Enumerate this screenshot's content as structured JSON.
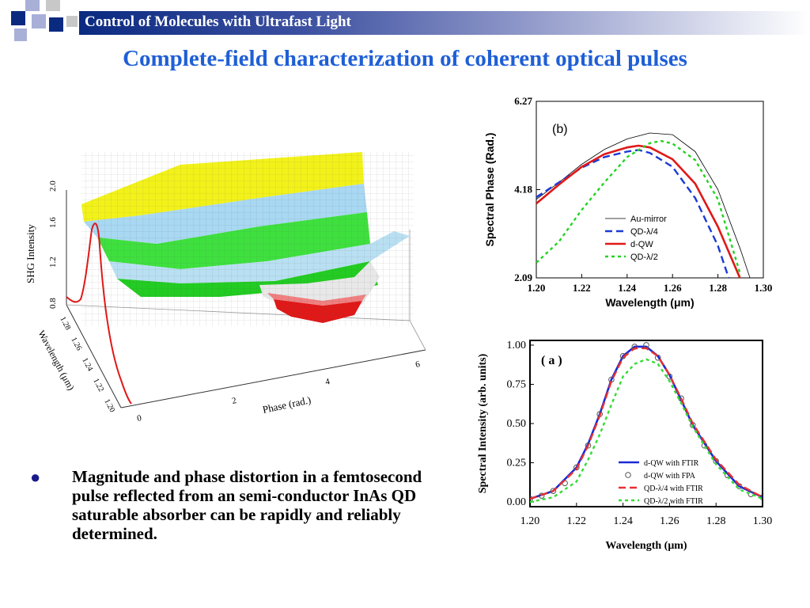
{
  "header": {
    "text": "Control of Molecules with Ultrafast Light",
    "colors": {
      "navy": "#0a2a80",
      "lavender": "#a8b0d8",
      "grey": "#c8c8c8"
    }
  },
  "title": "Complete-field characterization of coherent optical pulses",
  "bullet": {
    "text": "Magnitude and phase distortion in a femtosecond pulse reflected from an semi-conductor InAs QD saturable absorber can be rapidly and reliably determined."
  },
  "surface_plot": {
    "z_label": "SHG Intensity",
    "z_ticks": [
      "0.8",
      "1.2",
      "1.6",
      "2.0"
    ],
    "wl_label": "Wavelength (μm)",
    "wl_ticks": [
      "1.20",
      "1.22",
      "1.24",
      "1.26",
      "1.28"
    ],
    "phase_label": "Phase (rad.)",
    "phase_ticks": [
      "0",
      "2",
      "4",
      "6"
    ]
  },
  "chart_data": [
    {
      "type": "line",
      "panel_label": "(b)",
      "xlabel": "Wavelength (μm)",
      "ylabel": "Spectral Phase (Rad.)",
      "xlim": [
        1.2,
        1.3
      ],
      "ylim": [
        2.09,
        6.27
      ],
      "xticks": [
        "1.20",
        "1.22",
        "1.24",
        "1.26",
        "1.28",
        "1.30"
      ],
      "yticks": [
        "2.09",
        "4.18",
        "6.27"
      ],
      "legend": "bottom-right",
      "series": [
        {
          "name": "Au-mirror",
          "color": "#000000",
          "style": "solid-thin",
          "x": [
            1.2,
            1.21,
            1.22,
            1.23,
            1.24,
            1.25,
            1.26,
            1.27,
            1.28,
            1.29,
            1.295
          ],
          "y": [
            3.95,
            4.35,
            4.78,
            5.13,
            5.38,
            5.52,
            5.48,
            5.08,
            4.18,
            2.75,
            1.95
          ]
        },
        {
          "name": "QD-λ/4",
          "color": "#1a3bd6",
          "style": "dashed",
          "x": [
            1.2,
            1.21,
            1.22,
            1.23,
            1.24,
            1.245,
            1.25,
            1.26,
            1.27,
            1.28,
            1.285
          ],
          "y": [
            4.0,
            4.35,
            4.7,
            4.95,
            5.08,
            5.12,
            5.05,
            4.72,
            3.98,
            2.85,
            2.05
          ]
        },
        {
          "name": "d-QW",
          "color": "#e01818",
          "style": "solid-thick",
          "x": [
            1.2,
            1.21,
            1.22,
            1.23,
            1.24,
            1.245,
            1.25,
            1.26,
            1.27,
            1.28,
            1.29
          ],
          "y": [
            3.85,
            4.3,
            4.72,
            5.02,
            5.18,
            5.22,
            5.18,
            4.9,
            4.32,
            3.3,
            2.05
          ]
        },
        {
          "name": "QD-λ/2",
          "color": "#22d422",
          "style": "dotted",
          "x": [
            1.2,
            1.21,
            1.22,
            1.23,
            1.24,
            1.25,
            1.255,
            1.26,
            1.27,
            1.28,
            1.29
          ],
          "y": [
            2.45,
            2.95,
            3.7,
            4.35,
            4.95,
            5.28,
            5.33,
            5.27,
            4.88,
            3.95,
            2.15
          ]
        }
      ]
    },
    {
      "type": "line",
      "panel_label": "( a )",
      "xlabel": "Wavelength (μm)",
      "ylabel": "Spectral Intensity (arb. units)",
      "xlim": [
        1.2,
        1.3
      ],
      "ylim": [
        -0.03,
        1.03
      ],
      "xticks": [
        "1.20",
        "1.22",
        "1.24",
        "1.26",
        "1.28",
        "1.30"
      ],
      "yticks": [
        "0.00",
        "0.25",
        "0.50",
        "0.75",
        "1.00"
      ],
      "legend": "bottom-right",
      "series": [
        {
          "name": "d-QW with FTIR",
          "color": "#1a2ad6",
          "style": "solid-thick",
          "x": [
            1.2,
            1.21,
            1.22,
            1.225,
            1.23,
            1.235,
            1.24,
            1.245,
            1.25,
            1.255,
            1.26,
            1.265,
            1.27,
            1.28,
            1.29,
            1.3
          ],
          "y": [
            0.02,
            0.07,
            0.22,
            0.37,
            0.56,
            0.78,
            0.93,
            0.99,
            0.99,
            0.93,
            0.81,
            0.65,
            0.49,
            0.26,
            0.1,
            0.03
          ]
        },
        {
          "name": "d-QW with FPA",
          "color": "#555555",
          "style": "circles",
          "x": [
            1.2,
            1.205,
            1.21,
            1.215,
            1.22,
            1.225,
            1.23,
            1.235,
            1.24,
            1.245,
            1.25,
            1.255,
            1.26,
            1.265,
            1.27,
            1.275,
            1.28,
            1.285,
            1.29,
            1.295,
            1.3
          ],
          "y": [
            0.02,
            0.04,
            0.07,
            0.12,
            0.22,
            0.36,
            0.56,
            0.78,
            0.93,
            0.99,
            1.0,
            0.92,
            0.8,
            0.66,
            0.49,
            0.36,
            0.26,
            0.17,
            0.1,
            0.05,
            0.03
          ]
        },
        {
          "name": "QD-λ/4 with FTIR",
          "color": "#e83030",
          "style": "dashed",
          "x": [
            1.2,
            1.21,
            1.22,
            1.225,
            1.23,
            1.235,
            1.24,
            1.245,
            1.25,
            1.255,
            1.26,
            1.265,
            1.27,
            1.28,
            1.29,
            1.3
          ],
          "y": [
            0.02,
            0.07,
            0.21,
            0.36,
            0.55,
            0.77,
            0.92,
            0.98,
            0.98,
            0.93,
            0.81,
            0.66,
            0.5,
            0.27,
            0.11,
            0.03
          ]
        },
        {
          "name": "QD-λ/2 with FTIR",
          "color": "#33dd33",
          "style": "dotted",
          "x": [
            1.2,
            1.21,
            1.22,
            1.225,
            1.23,
            1.235,
            1.24,
            1.245,
            1.25,
            1.255,
            1.26,
            1.265,
            1.27,
            1.28,
            1.29,
            1.3
          ],
          "y": [
            0.0,
            0.03,
            0.13,
            0.27,
            0.43,
            0.62,
            0.8,
            0.88,
            0.91,
            0.88,
            0.77,
            0.63,
            0.48,
            0.24,
            0.08,
            0.02
          ]
        }
      ]
    }
  ]
}
